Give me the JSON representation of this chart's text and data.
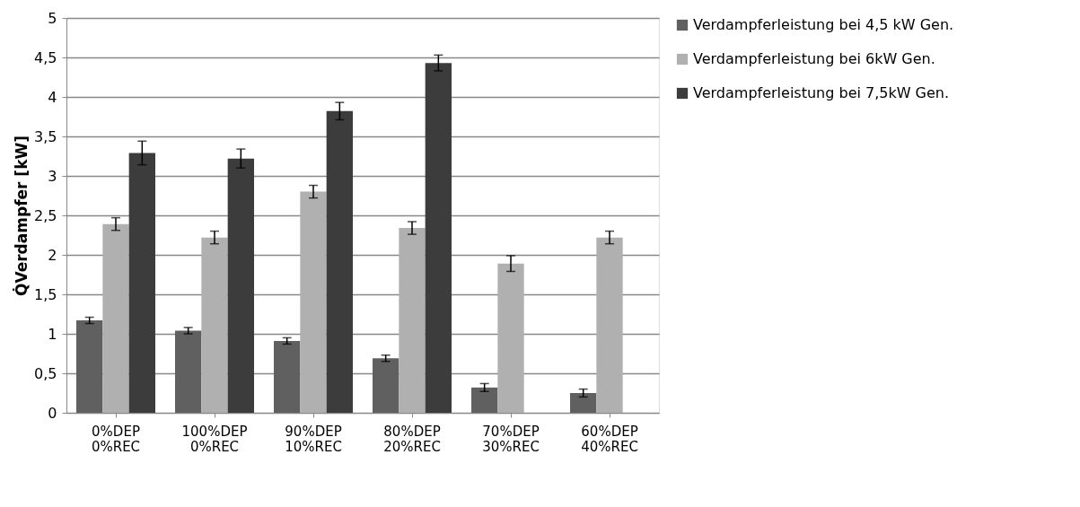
{
  "chart_data": {
    "type": "bar",
    "ylabel": "Q̇Verdampfer [kW]",
    "categories": [
      "0%DEP 0%REC",
      "100%DEP 0%REC",
      "90%DEP 10%REC",
      "80%DEP 20%REC",
      "70%DEP 30%REC",
      "60%DEP 40%REC"
    ],
    "series": [
      {
        "name": "Verdampferleistung bei 4,5 kW Gen.",
        "color": "#606060",
        "values": [
          1.17,
          1.04,
          0.91,
          0.69,
          0.32,
          0.25
        ],
        "errors": [
          0.04,
          0.04,
          0.04,
          0.04,
          0.05,
          0.05
        ]
      },
      {
        "name": "Verdampferleistung bei 6kW Gen.",
        "color": "#b0b0b0",
        "values": [
          2.39,
          2.22,
          2.8,
          2.34,
          1.89,
          2.22
        ],
        "errors": [
          0.08,
          0.08,
          0.08,
          0.08,
          0.1,
          0.08
        ]
      },
      {
        "name": "Verdampferleistung bei 7,5kW Gen.",
        "color": "#3c3c3c",
        "values": [
          3.29,
          3.22,
          3.82,
          4.43,
          null,
          null
        ],
        "errors": [
          0.15,
          0.12,
          0.11,
          0.1,
          null,
          null
        ]
      }
    ],
    "ylim": [
      0,
      5
    ],
    "yticks": [
      0,
      {
        "value": 0.5,
        "label": "0,5"
      },
      1,
      {
        "value": 1.5,
        "label": "1,5"
      },
      2,
      {
        "value": 2.5,
        "label": "2,5"
      },
      3,
      {
        "value": 3.5,
        "label": "3,5"
      },
      4,
      {
        "value": 4.5,
        "label": "4,5"
      },
      5
    ],
    "grid": "y",
    "legend": "right"
  }
}
